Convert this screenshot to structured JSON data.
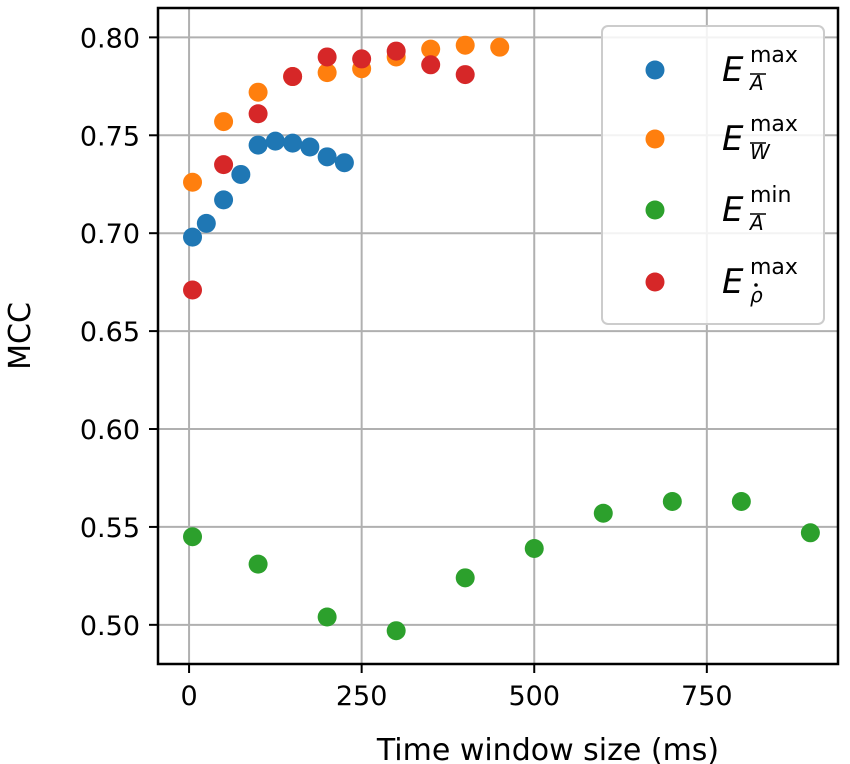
{
  "chart_data": {
    "type": "scatter",
    "title": "",
    "xlabel": "Time window size (ms)",
    "ylabel": "MCC",
    "xlim": [
      -45,
      940
    ],
    "ylim": [
      0.48,
      0.815
    ],
    "xticks": [
      0,
      250,
      500,
      750
    ],
    "xtick_labels": [
      "0",
      "250",
      "500",
      "750"
    ],
    "yticks": [
      0.5,
      0.55,
      0.6,
      0.65,
      0.7,
      0.75,
      0.8
    ],
    "ytick_labels": [
      "0.50",
      "0.55",
      "0.60",
      "0.65",
      "0.70",
      "0.75",
      "0.80"
    ],
    "grid": true,
    "legend_position": "top-right",
    "series": [
      {
        "name": "E_A",
        "label": {
          "base": "E",
          "sup": "max",
          "sub": "A",
          "sub_mark": "bar"
        },
        "color": "#1f77b4",
        "x": [
          5,
          25,
          50,
          75,
          100,
          125,
          150,
          175,
          200,
          225
        ],
        "y": [
          0.698,
          0.705,
          0.717,
          0.73,
          0.745,
          0.747,
          0.746,
          0.744,
          0.739,
          0.736
        ]
      },
      {
        "name": "E_W",
        "label": {
          "base": "E",
          "sup": "max",
          "sub": "W",
          "sub_mark": "bar"
        },
        "color": "#ff7f0e",
        "x": [
          5,
          50,
          100,
          150,
          200,
          250,
          300,
          350,
          400,
          450
        ],
        "y": [
          0.726,
          0.757,
          0.772,
          0.78,
          0.782,
          0.784,
          0.79,
          0.794,
          0.796,
          0.795
        ]
      },
      {
        "name": "E_A_min",
        "label": {
          "base": "E",
          "sup": "min",
          "sub": "A",
          "sub_mark": "bar"
        },
        "color": "#2ca02c",
        "x": [
          5,
          100,
          200,
          300,
          400,
          500,
          600,
          700,
          800,
          900
        ],
        "y": [
          0.545,
          0.531,
          0.504,
          0.497,
          0.524,
          0.539,
          0.557,
          0.563,
          0.563,
          0.547
        ]
      },
      {
        "name": "E_rho",
        "label": {
          "base": "E",
          "sup": "max",
          "sub": "ρ",
          "sub_mark": "dot"
        },
        "color": "#d62728",
        "x": [
          5,
          50,
          100,
          150,
          200,
          250,
          300,
          350,
          400
        ],
        "y": [
          0.671,
          0.735,
          0.761,
          0.78,
          0.79,
          0.789,
          0.793,
          0.786,
          0.781
        ]
      }
    ]
  }
}
